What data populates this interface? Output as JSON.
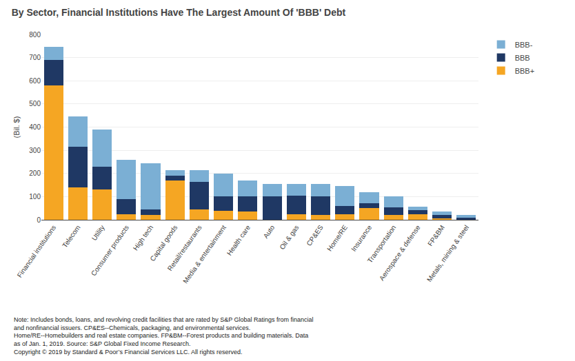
{
  "chart_data": {
    "type": "bar",
    "stacked": true,
    "title": "By Sector, Financial Institutions Have The Largest Amount Of 'BBB' Debt",
    "ylabel": "(Bil. $)",
    "footnote": "Note: Includes bonds, loans, and revolving credit facilities that are rated by S&P Global Ratings from financial\nand nonfinancial issuers. CP&ES--Chemicals, packaging, and environmental services.\nHome/RE--Homebuilders and real estate companies. FP&BM--Forest products and building materials. Data\nas of Jan. 1, 2019. Source: S&P Global Fixed Income Research.\nCopyright © 2019 by Standard & Poor’s Financial Services LLC. All rights reserved.",
    "categories": [
      "Financial institutions",
      "Telecom",
      "Utility",
      "Consumer products",
      "High tech",
      "Capital goods",
      "Retail/restaurants",
      "Media & entertainment",
      "Health care",
      "Auto",
      "Oil & gas",
      "CP&ES",
      "Home/RE",
      "Insurance",
      "Transportation",
      "Aerospace & defense",
      "FP&BM",
      "Metals, mining & steel"
    ],
    "series": [
      {
        "name": "BBB+",
        "color": "#f5a623",
        "values": [
          580,
          140,
          130,
          25,
          20,
          170,
          45,
          40,
          35,
          0,
          25,
          20,
          25,
          50,
          20,
          25,
          5,
          0
        ]
      },
      {
        "name": "BBB",
        "color": "#1f3864",
        "values": [
          110,
          175,
          100,
          65,
          25,
          20,
          120,
          60,
          65,
          100,
          80,
          80,
          35,
          20,
          35,
          18,
          15,
          10
        ]
      },
      {
        "name": "BBB-",
        "color": "#7bafd4",
        "values": [
          55,
          130,
          160,
          170,
          200,
          25,
          50,
          100,
          70,
          55,
          50,
          55,
          85,
          50,
          45,
          15,
          15,
          10
        ]
      }
    ],
    "ylim": [
      0,
      800
    ],
    "yticks": [
      0,
      100,
      200,
      300,
      400,
      500,
      600,
      700,
      800
    ],
    "grid": true,
    "legend": "right"
  }
}
